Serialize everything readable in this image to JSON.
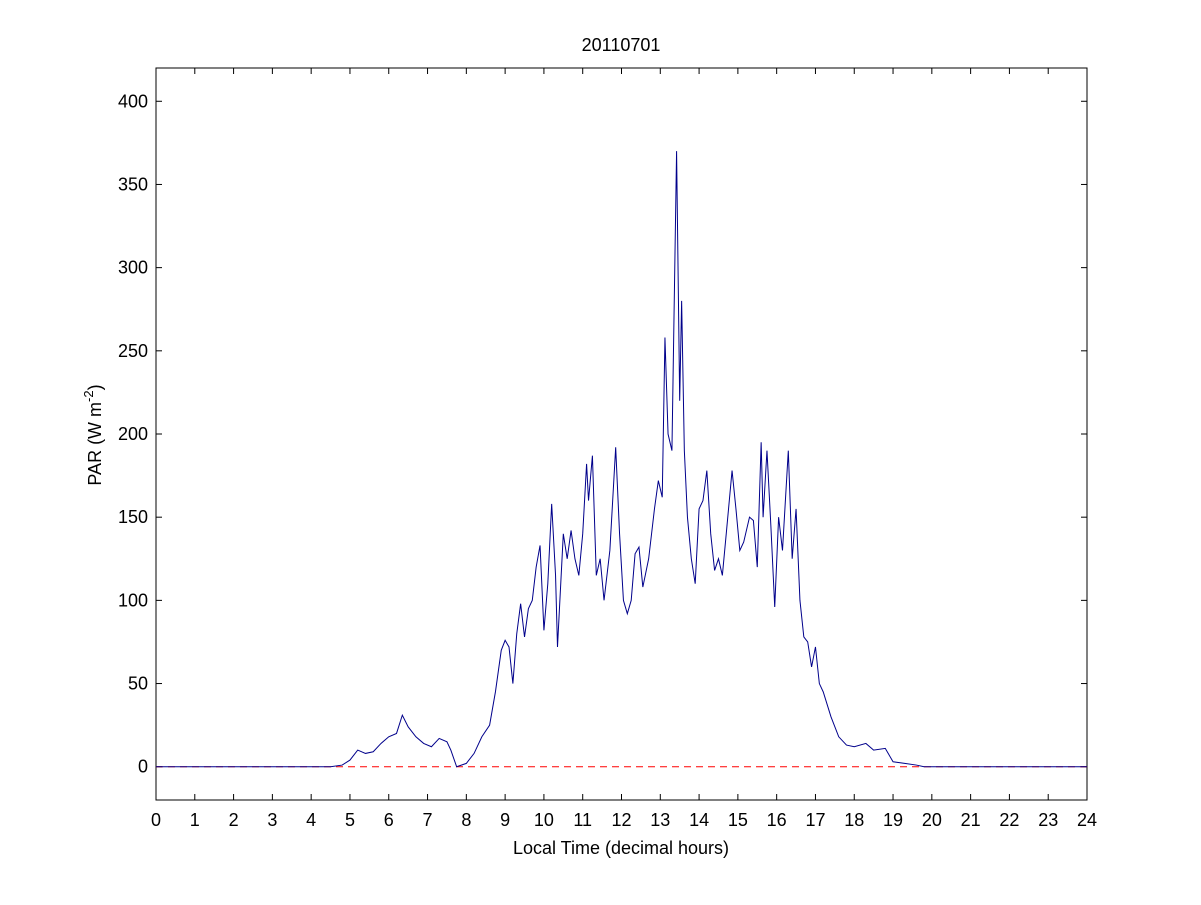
{
  "chart_data": {
    "type": "line",
    "title": "20110701",
    "x_label": "Local Time (decimal hours)",
    "y_label": {
      "text": "PAR (W m",
      "superscript": "-2",
      "suffix": ")"
    },
    "xlim": [
      0,
      24
    ],
    "xticks": [
      0,
      1,
      2,
      3,
      4,
      5,
      6,
      7,
      8,
      9,
      10,
      11,
      12,
      13,
      14,
      15,
      16,
      17,
      18,
      19,
      20,
      21,
      22,
      23,
      24
    ],
    "ylim": [
      -20,
      420
    ],
    "yticks": [
      0,
      50,
      100,
      150,
      200,
      250,
      300,
      350,
      400
    ],
    "grid": false,
    "reference_line": {
      "value": 0,
      "color": "#ff0000",
      "style": "dashed"
    },
    "series": [
      {
        "color": "#00008b",
        "x": [
          0,
          4.5,
          4.8,
          5.0,
          5.2,
          5.4,
          5.6,
          5.8,
          6.0,
          6.2,
          6.35,
          6.5,
          6.7,
          6.9,
          7.1,
          7.3,
          7.5,
          7.6,
          7.75,
          8.0,
          8.2,
          8.4,
          8.6,
          8.75,
          8.9,
          9.0,
          9.1,
          9.2,
          9.3,
          9.4,
          9.5,
          9.6,
          9.7,
          9.8,
          9.9,
          10.0,
          10.1,
          10.2,
          10.3,
          10.35,
          10.5,
          10.6,
          10.7,
          10.8,
          10.9,
          11.0,
          11.1,
          11.15,
          11.25,
          11.35,
          11.45,
          11.55,
          11.7,
          11.85,
          11.95,
          12.05,
          12.15,
          12.25,
          12.35,
          12.45,
          12.55,
          12.7,
          12.85,
          12.95,
          13.05,
          13.12,
          13.2,
          13.3,
          13.42,
          13.5,
          13.55,
          13.62,
          13.7,
          13.8,
          13.9,
          14.0,
          14.1,
          14.2,
          14.3,
          14.4,
          14.5,
          14.6,
          14.7,
          14.85,
          14.95,
          15.05,
          15.15,
          15.3,
          15.4,
          15.5,
          15.6,
          15.65,
          15.75,
          15.85,
          15.95,
          16.05,
          16.15,
          16.3,
          16.4,
          16.5,
          16.6,
          16.7,
          16.8,
          16.9,
          17.0,
          17.1,
          17.2,
          17.4,
          17.6,
          17.8,
          18.0,
          18.3,
          18.5,
          18.8,
          19.0,
          19.3,
          19.6,
          19.8,
          24
        ],
        "values": [
          0,
          0,
          1,
          4,
          10,
          8,
          9,
          14,
          18,
          20,
          31,
          24,
          18,
          14,
          12,
          17,
          15,
          10,
          0,
          2,
          8,
          18,
          25,
          45,
          70,
          76,
          72,
          50,
          80,
          98,
          78,
          95,
          100,
          120,
          133,
          82,
          110,
          158,
          115,
          72,
          140,
          125,
          142,
          125,
          115,
          140,
          182,
          160,
          187,
          115,
          125,
          100,
          130,
          192,
          140,
          100,
          92,
          100,
          128,
          132,
          108,
          125,
          155,
          172,
          162,
          258,
          200,
          190,
          370,
          220,
          280,
          190,
          150,
          125,
          110,
          155,
          160,
          178,
          140,
          118,
          125,
          115,
          140,
          178,
          155,
          130,
          135,
          150,
          148,
          120,
          195,
          150,
          190,
          145,
          96,
          150,
          130,
          190,
          125,
          155,
          100,
          78,
          75,
          60,
          72,
          50,
          45,
          30,
          18,
          13,
          12,
          14,
          10,
          11,
          3,
          2,
          1,
          0,
          0
        ]
      }
    ]
  }
}
